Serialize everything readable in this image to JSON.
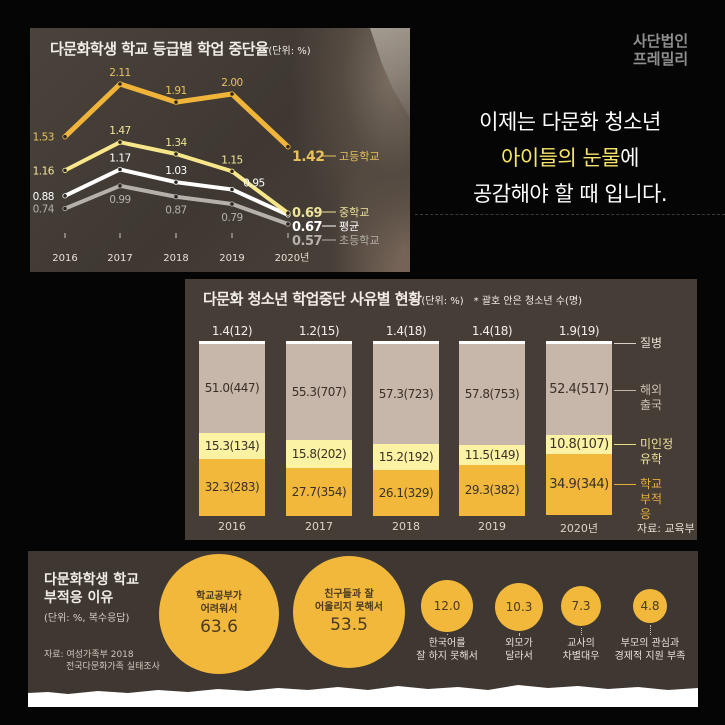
{
  "branding": {
    "logo_line1": "사단법인",
    "logo_line2": "프레밀리"
  },
  "headline": {
    "line1": "이제는 다문화 청소년",
    "line2_highlight": "아이들의 눈물",
    "line2_rest": "에",
    "line3": "공감해야 할 때 입니다."
  },
  "line_chart": {
    "title": "다문화학생 학교 등급별 학업 중단율",
    "unit": "(단위: %)"
  },
  "bar_chart": {
    "title": "다문화 청소년 학업중단 사유별 현황",
    "unit": "(단위: %)",
    "note": "* 괄호 안은 청소년 수(명)",
    "source": "자료: 교육부",
    "legend": [
      "질병",
      "해외 출국",
      "미인정 유학",
      "학교 부적응"
    ]
  },
  "bubble_chart": {
    "title_line1": "다문화학생 학교",
    "title_line2": "부적응 이유",
    "unit": "(단위: %, 복수응답)",
    "source_line1": "자료: 여성가족부 2018",
    "source_line2": "전국다문화가족 실태조사"
  },
  "chart_data": [
    {
      "type": "line",
      "title": "다문화학생 학교 등급별 학업 중단율",
      "subtitle": "(단위: %)",
      "x": [
        "2016",
        "2017",
        "2018",
        "2019",
        "2020년"
      ],
      "series": [
        {
          "name": "고등학교",
          "color": "#f0b43a",
          "values": [
            1.53,
            2.11,
            1.91,
            2.0,
            1.42
          ],
          "labels": [
            "1.53",
            "2.11",
            "1.91",
            "2.00",
            "1.42"
          ]
        },
        {
          "name": "중학교",
          "color": "#f7e68a",
          "values": [
            1.16,
            1.47,
            1.34,
            1.15,
            0.69
          ],
          "labels": [
            "1.16",
            "1.47",
            "1.34",
            "1.15",
            "0.69"
          ]
        },
        {
          "name": "평균",
          "color": "#ffffff",
          "values": [
            0.88,
            1.17,
            1.03,
            0.95,
            0.67
          ],
          "labels": [
            "0.88",
            "1.17",
            "1.03",
            "0.95",
            "0.67"
          ]
        },
        {
          "name": "초등학교",
          "color": "#b5b0aa",
          "values": [
            0.74,
            0.99,
            0.87,
            0.79,
            0.57
          ],
          "labels": [
            "0.74",
            "0.99",
            "0.87",
            "0.79",
            "0.57"
          ]
        }
      ],
      "xlabel": "",
      "ylabel": "",
      "grid": false
    },
    {
      "type": "bar",
      "stacked": true,
      "title": "다문화 청소년 학업중단 사유별 현황",
      "subtitle": "(단위: %) * 괄호 안은 청소년 수(명)",
      "categories": [
        "2016",
        "2017",
        "2018",
        "2019",
        "2020년"
      ],
      "series": [
        {
          "name": "학교 부적응",
          "color": "#f1b83c",
          "values": [
            32.3,
            27.7,
            26.1,
            29.3,
            34.9
          ],
          "counts": [
            283,
            354,
            329,
            382,
            344
          ],
          "labels": [
            "32.3(283)",
            "27.7(354)",
            "26.1(329)",
            "29.3(382)",
            "34.9(344)"
          ]
        },
        {
          "name": "미인정 유학",
          "color": "#fcf2a4",
          "values": [
            15.3,
            15.8,
            15.2,
            11.5,
            10.8
          ],
          "counts": [
            134,
            202,
            192,
            149,
            107
          ],
          "labels": [
            "15.3(134)",
            "15.8(202)",
            "15.2(192)",
            "11.5(149)",
            "10.8(107)"
          ]
        },
        {
          "name": "해외 출국",
          "color": "#c7b6aa",
          "values": [
            51.0,
            55.3,
            57.3,
            57.8,
            52.4
          ],
          "counts": [
            447,
            707,
            723,
            753,
            517
          ],
          "labels": [
            "51.0(447)",
            "55.3(707)",
            "57.3(723)",
            "57.8(753)",
            "52.4(517)"
          ]
        },
        {
          "name": "질병",
          "color": "#ffffff",
          "values": [
            1.4,
            1.2,
            1.4,
            1.4,
            1.9
          ],
          "counts": [
            12,
            15,
            18,
            18,
            19
          ],
          "labels": [
            "1.4(12)",
            "1.2(15)",
            "1.4(18)",
            "1.4(18)",
            "1.9(19)"
          ]
        }
      ],
      "source": "자료: 교육부",
      "ylim": [
        0,
        100
      ]
    },
    {
      "type": "bubble",
      "title": "다문화학생 학교 부적응 이유",
      "subtitle": "(단위: %, 복수응답)",
      "categories": [
        "학교공부가 어려워서",
        "친구들과 잘 어울리지 못해서",
        "한국어를 잘 하지 못해서",
        "외모가 달라서",
        "교사의 차별대우",
        "부모의 관심과 경제적 지원 부족"
      ],
      "values": [
        63.6,
        53.5,
        12.0,
        10.3,
        7.3,
        4.8
      ],
      "value_labels": [
        "63.6",
        "53.5",
        "12.0",
        "10.3",
        "7.3",
        "4.8"
      ],
      "label_lines": [
        [
          "학교공부가",
          "어려워서"
        ],
        [
          "친구들과 잘",
          "어울리지 못해서"
        ],
        [
          "한국어를",
          "잘 하지 못해서"
        ],
        [
          "외모가",
          "달라서"
        ],
        [
          "교사의",
          "차별대우"
        ],
        [
          "부모의 관심과",
          "경제적 지원 부족"
        ]
      ],
      "source": "자료: 여성가족부 2018 전국다문화가족 실태조사"
    }
  ]
}
